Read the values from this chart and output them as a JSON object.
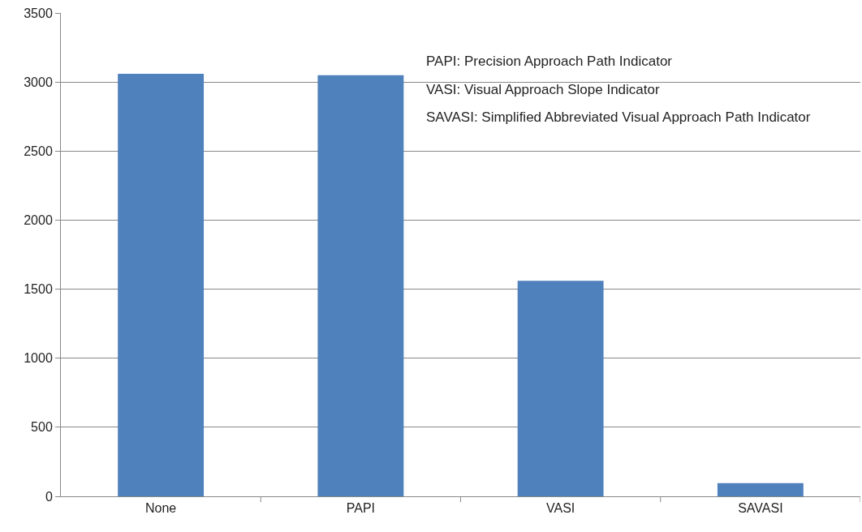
{
  "chart_data": {
    "type": "bar",
    "categories": [
      "None",
      "PAPI",
      "VASI",
      "SAVASI"
    ],
    "values": [
      3060,
      3050,
      1560,
      95
    ],
    "color": "#4f81bd",
    "ylim": [
      0,
      3500
    ],
    "yticks": [
      0,
      500,
      1000,
      1500,
      2000,
      2500,
      3000,
      3500
    ],
    "grid": "y",
    "legend": false,
    "annotations": [
      "PAPI: Precision Approach Path Indicator",
      "VASI: Visual Approach Slope Indicator",
      "SAVASI: Simplified Abbreviated Visual Approach Path Indicator"
    ]
  }
}
